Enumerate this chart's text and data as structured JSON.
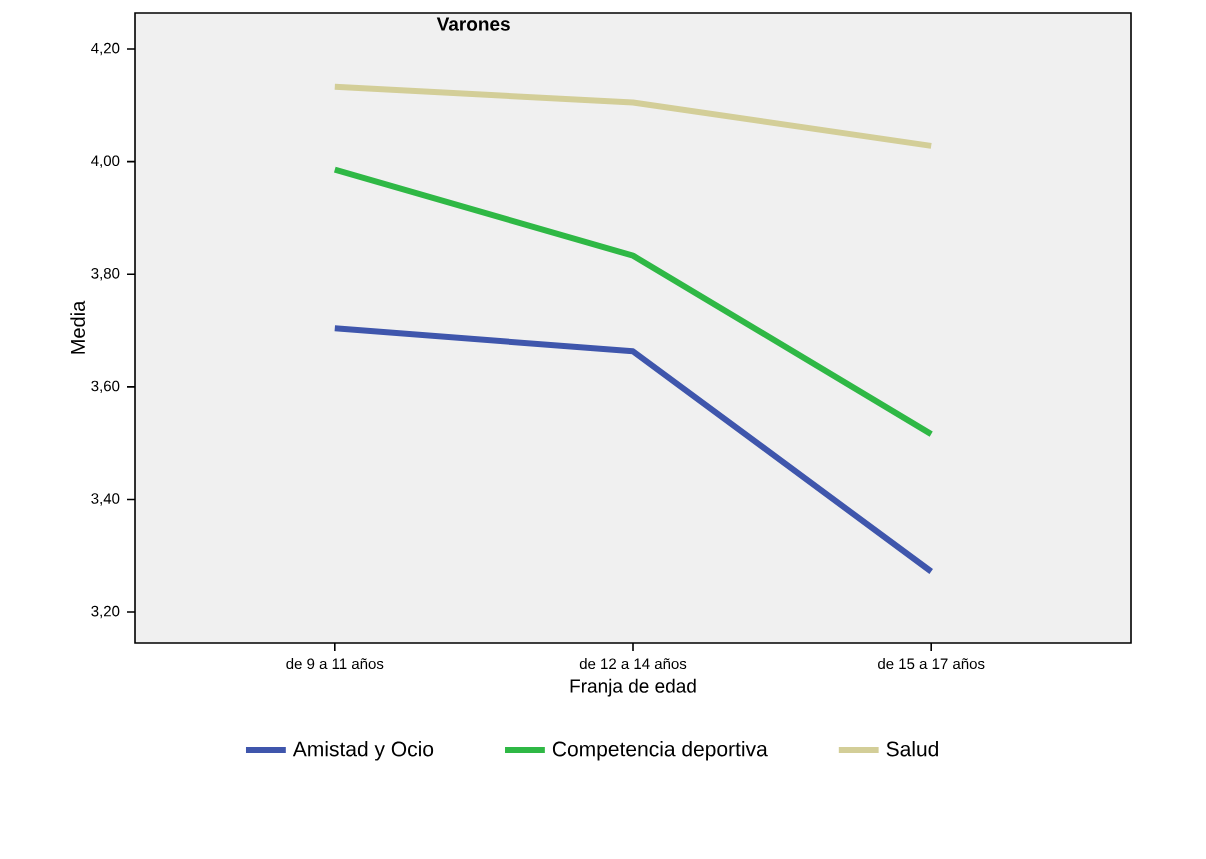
{
  "chart_data": {
    "type": "line",
    "title": "Varones",
    "xlabel": "Franja de edad",
    "ylabel": "Media",
    "categories": [
      "de 9 a 11 años",
      "de 12 a 14 años",
      "de 15 a 17 años"
    ],
    "series": [
      {
        "name": "Amistad y Ocio",
        "color": "#3f56ac",
        "values": [
          3.704,
          3.663,
          3.272
        ]
      },
      {
        "name": "Competencia deportiva",
        "color": "#2fb845",
        "values": [
          3.986,
          3.833,
          3.516
        ]
      },
      {
        "name": "Salud",
        "color": "#d3ce98",
        "values": [
          4.133,
          4.105,
          4.028
        ]
      }
    ],
    "ylim": [
      3.145,
      4.264
    ],
    "yticks": [
      {
        "value": 3.2,
        "label": "3,20"
      },
      {
        "value": 3.4,
        "label": "3,40"
      },
      {
        "value": 3.6,
        "label": "3,60"
      },
      {
        "value": 3.8,
        "label": "3,80"
      },
      {
        "value": 4.0,
        "label": "4,00"
      },
      {
        "value": 4.2,
        "label": "4,20"
      }
    ],
    "legend": "bottom",
    "grid": false,
    "marker": "none",
    "line_style": "solid"
  }
}
